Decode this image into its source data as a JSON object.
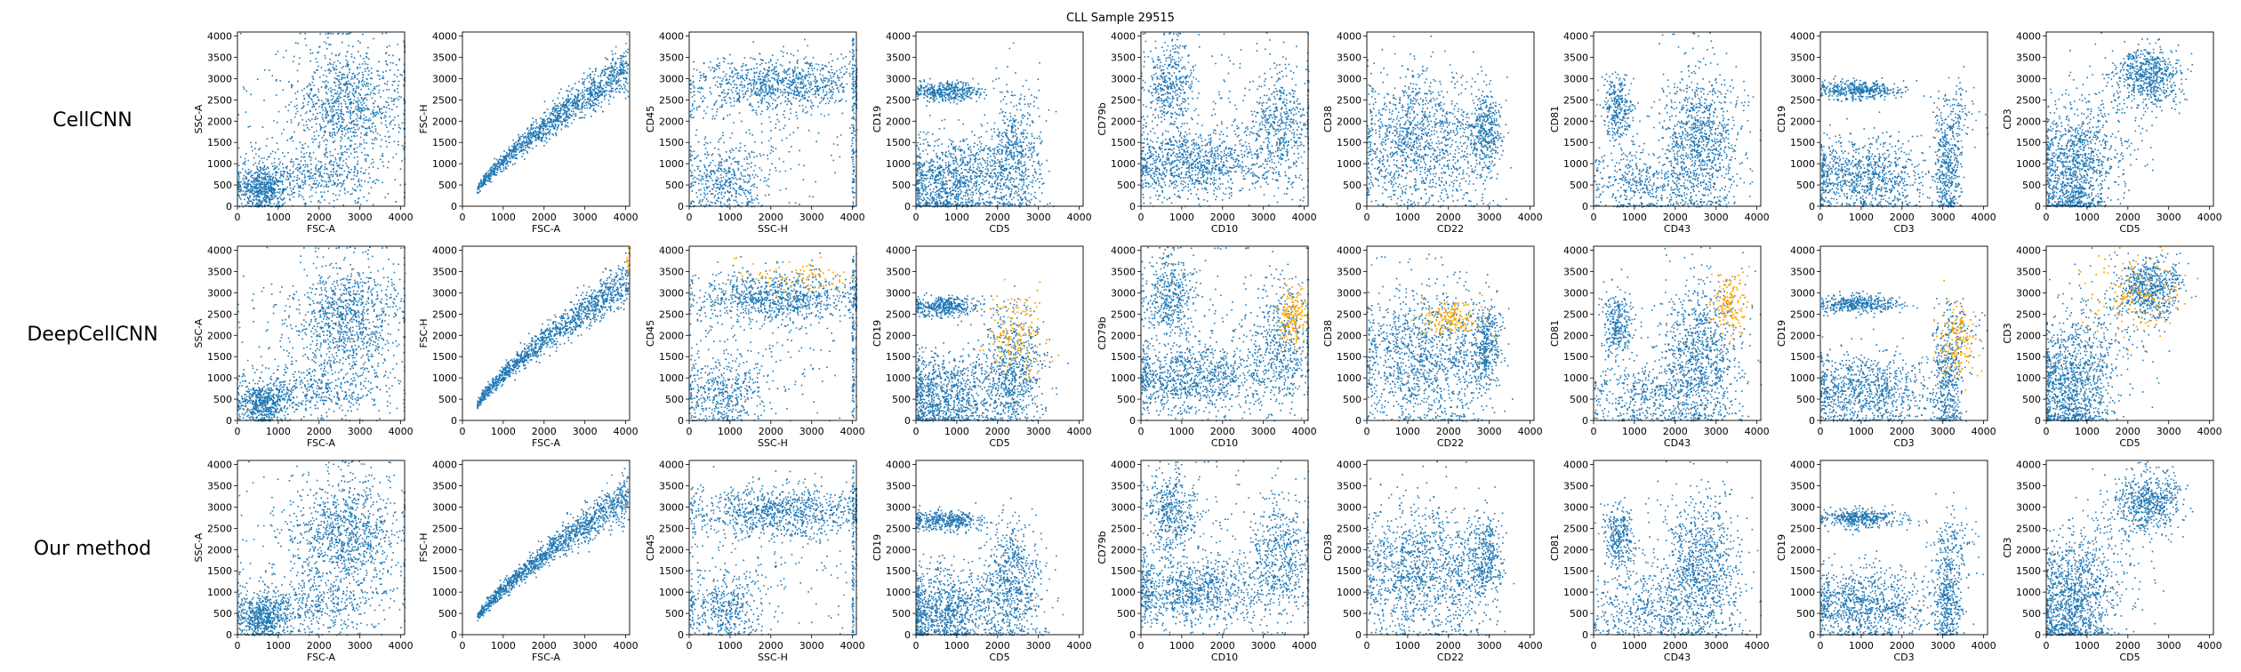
{
  "figure": {
    "title": "CLL Sample 29515",
    "colors": {
      "background_cells": "#1f77b4",
      "selected_cells": "#ffa500"
    }
  },
  "chart_data": {
    "type": "scatter",
    "title": "CLL Sample 29515",
    "rows": [
      {
        "name": "CellCNN",
        "highlight_selected": false
      },
      {
        "name": "DeepCellCNN",
        "highlight_selected": true
      },
      {
        "name": "Our method",
        "highlight_selected": false
      }
    ],
    "panels": [
      {
        "xlabel": "FSC-A",
        "ylabel": "SSC-A"
      },
      {
        "xlabel": "FSC-A",
        "ylabel": "FSC-H"
      },
      {
        "xlabel": "SSC-H",
        "ylabel": "CD45"
      },
      {
        "xlabel": "CD5",
        "ylabel": "CD19"
      },
      {
        "xlabel": "CD10",
        "ylabel": "CD79b"
      },
      {
        "xlabel": "CD22",
        "ylabel": "CD38"
      },
      {
        "xlabel": "CD43",
        "ylabel": "CD81"
      },
      {
        "xlabel": "CD3",
        "ylabel": "CD19"
      },
      {
        "xlabel": "CD5",
        "ylabel": "CD3"
      }
    ],
    "xlim": [
      0,
      4096
    ],
    "ylim": [
      0,
      4096
    ],
    "xticks": [
      "0",
      "1000",
      "2000",
      "3000",
      "4000"
    ],
    "yticks": [
      "0",
      "500",
      "1000",
      "1500",
      "2000",
      "2500",
      "3000",
      "3500",
      "4000"
    ],
    "populations": [
      [
        {
          "cx": 2700,
          "cy": 2400,
          "sx": 650,
          "sy": 700,
          "n": 900
        },
        {
          "cx": 600,
          "cy": 400,
          "sx": 300,
          "sy": 250,
          "n": 500
        },
        {
          "cx": 1700,
          "cy": 700,
          "sx": 900,
          "sy": 300,
          "n": 400
        },
        {
          "cx": 2200,
          "cy": 1800,
          "sx": 1200,
          "sy": 1200,
          "n": 250
        }
      ],
      [
        {
          "shape": "curve",
          "n": 1300
        }
      ],
      [
        {
          "cx": 2200,
          "cy": 2900,
          "sx": 1100,
          "sy": 300,
          "n": 900
        },
        {
          "cx": 800,
          "cy": 600,
          "sx": 500,
          "sy": 400,
          "n": 400
        },
        {
          "cx": 1700,
          "cy": 1700,
          "sx": 1300,
          "sy": 800,
          "n": 200
        },
        {
          "shape": "vline",
          "x": 4000,
          "n": 120
        }
      ],
      [
        {
          "cx": 700,
          "cy": 2700,
          "sx": 450,
          "sy": 120,
          "n": 400
        },
        {
          "cx": 700,
          "cy": 600,
          "sx": 600,
          "sy": 500,
          "n": 900
        },
        {
          "cx": 2300,
          "cy": 900,
          "sx": 400,
          "sy": 600,
          "n": 500
        },
        {
          "cx": 2400,
          "cy": 1800,
          "sx": 350,
          "sy": 600,
          "n": 200
        }
      ],
      [
        {
          "cx": 700,
          "cy": 2900,
          "sx": 300,
          "sy": 500,
          "n": 400
        },
        {
          "cx": 1200,
          "cy": 1000,
          "sx": 900,
          "sy": 400,
          "n": 900
        },
        {
          "cx": 3400,
          "cy": 1800,
          "sx": 400,
          "sy": 700,
          "n": 500
        },
        {
          "cx": 2000,
          "cy": 2000,
          "sx": 1500,
          "sy": 1000,
          "n": 200
        }
      ],
      [
        {
          "cx": 1100,
          "cy": 1500,
          "sx": 700,
          "sy": 800,
          "n": 1000
        },
        {
          "cx": 2900,
          "cy": 1800,
          "sx": 200,
          "sy": 500,
          "n": 350
        },
        {
          "cx": 2300,
          "cy": 1400,
          "sx": 400,
          "sy": 900,
          "n": 250
        }
      ],
      [
        {
          "cx": 2600,
          "cy": 1500,
          "sx": 500,
          "sy": 900,
          "n": 1000
        },
        {
          "cx": 600,
          "cy": 2300,
          "sx": 200,
          "sy": 400,
          "n": 300
        },
        {
          "cx": 1200,
          "cy": 600,
          "sx": 700,
          "sy": 400,
          "n": 400
        }
      ],
      [
        {
          "cx": 900,
          "cy": 2750,
          "sx": 500,
          "sy": 110,
          "n": 400
        },
        {
          "cx": 1100,
          "cy": 700,
          "sx": 800,
          "sy": 450,
          "n": 900
        },
        {
          "cx": 3100,
          "cy": 900,
          "sx": 180,
          "sy": 700,
          "n": 400
        },
        {
          "cx": 3300,
          "cy": 2200,
          "sx": 300,
          "sy": 400,
          "n": 100
        }
      ],
      [
        {
          "cx": 2500,
          "cy": 3100,
          "sx": 400,
          "sy": 350,
          "n": 600
        },
        {
          "cx": 600,
          "cy": 800,
          "sx": 450,
          "sy": 700,
          "n": 1000
        },
        {
          "cx": 1400,
          "cy": 1800,
          "sx": 600,
          "sy": 700,
          "n": 200
        }
      ]
    ],
    "selected_populations": [
      [],
      [
        {
          "cx": 4050,
          "cy": 3800,
          "sx": 30,
          "sy": 200,
          "n": 20
        }
      ],
      [
        {
          "cx": 2800,
          "cy": 3400,
          "sx": 700,
          "sy": 200,
          "n": 90
        }
      ],
      [
        {
          "cx": 2400,
          "cy": 2000,
          "sx": 400,
          "sy": 500,
          "n": 160
        }
      ],
      [
        {
          "cx": 3700,
          "cy": 2500,
          "sx": 200,
          "sy": 350,
          "n": 160
        }
      ],
      [
        {
          "cx": 2000,
          "cy": 2400,
          "sx": 350,
          "sy": 200,
          "n": 160
        }
      ],
      [
        {
          "cx": 3300,
          "cy": 2800,
          "sx": 200,
          "sy": 350,
          "n": 150
        }
      ],
      [
        {
          "cx": 3400,
          "cy": 1900,
          "sx": 250,
          "sy": 500,
          "n": 150
        }
      ],
      [
        {
          "cx": 2200,
          "cy": 3000,
          "sx": 550,
          "sy": 500,
          "n": 150
        }
      ]
    ]
  }
}
